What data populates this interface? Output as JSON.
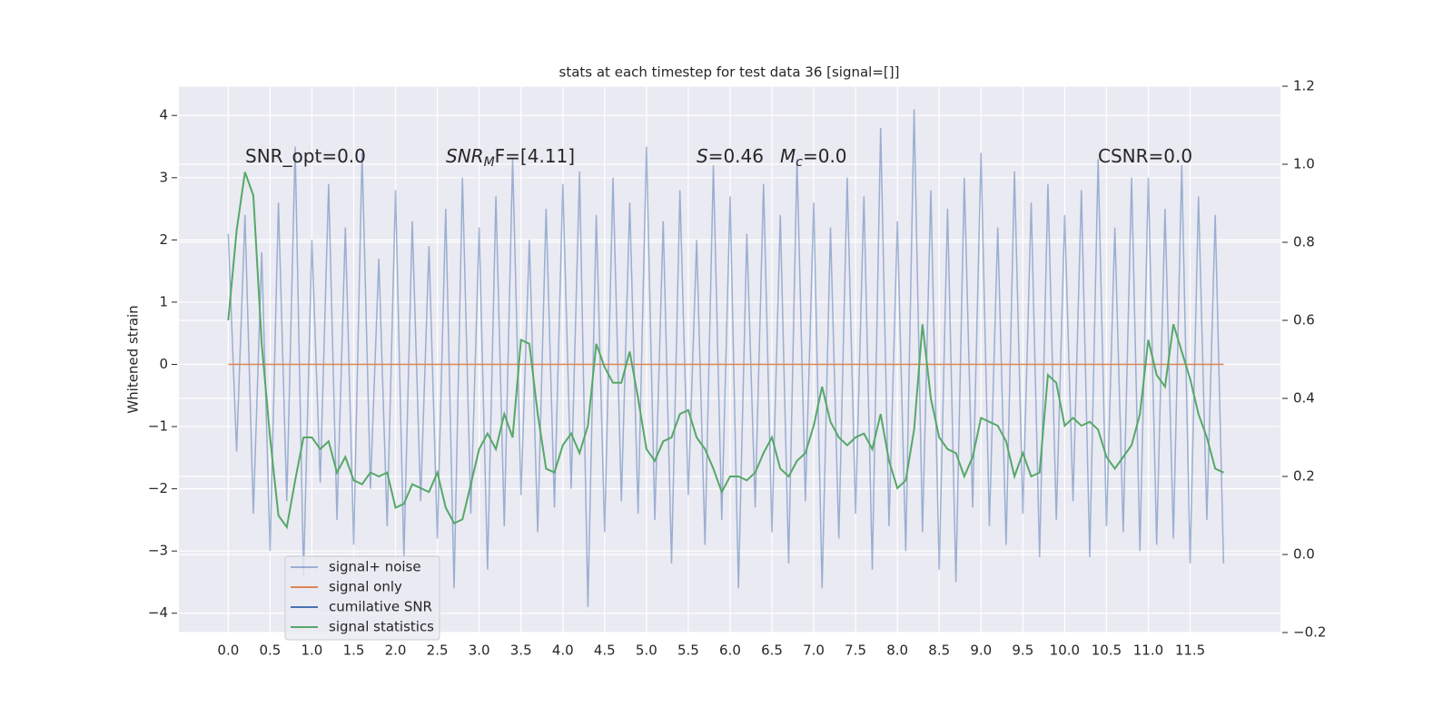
{
  "chart_data": {
    "type": "line",
    "title": "stats at each timestep for test data 36 [signal=[]]",
    "ylabel": "Whitened strain",
    "grid": true,
    "legend": "lower left",
    "annotations": [
      {
        "text": "SNR_opt=0.0"
      },
      {
        "italic": "SNR",
        "sub": "M",
        "text": "F=[4.11]"
      },
      {
        "italic": "S",
        "text": "=0.46"
      },
      {
        "italic": "M",
        "sub": "c",
        "text": "=0.0"
      },
      {
        "text": "CSNR=0.0"
      }
    ],
    "xlim": [
      -0.59,
      12.58
    ],
    "ylim": [
      -4.31,
      4.47
    ],
    "y2lim": [
      -0.2,
      1.2
    ],
    "xticks": [
      {
        "value": 0,
        "label": "0.0"
      },
      {
        "value": 0.5,
        "label": "0.5"
      },
      {
        "value": 1,
        "label": "1.0"
      },
      {
        "value": 1.5,
        "label": "1.5"
      },
      {
        "value": 2,
        "label": "2.0"
      },
      {
        "value": 2.5,
        "label": "2.5"
      },
      {
        "value": 3,
        "label": "3.0"
      },
      {
        "value": 3.5,
        "label": "3.5"
      },
      {
        "value": 4,
        "label": "4.0"
      },
      {
        "value": 4.5,
        "label": "4.5"
      },
      {
        "value": 5,
        "label": "5.0"
      },
      {
        "value": 5.5,
        "label": "5.5"
      },
      {
        "value": 6,
        "label": "6.0"
      },
      {
        "value": 6.5,
        "label": "6.5"
      },
      {
        "value": 7,
        "label": "7.0"
      },
      {
        "value": 7.5,
        "label": "7.5"
      },
      {
        "value": 8,
        "label": "8.0"
      },
      {
        "value": 8.5,
        "label": "8.5"
      },
      {
        "value": 9,
        "label": "9.0"
      },
      {
        "value": 9.5,
        "label": "9.5"
      },
      {
        "value": 10,
        "label": "10.0"
      },
      {
        "value": 10.5,
        "label": "10.5"
      },
      {
        "value": 11,
        "label": "11.0"
      },
      {
        "value": 11.5,
        "label": "11.5"
      }
    ],
    "yticks": [
      {
        "value": -4,
        "label": "−4"
      },
      {
        "value": -3,
        "label": "−3"
      },
      {
        "value": -2,
        "label": "−2"
      },
      {
        "value": -1,
        "label": "−1"
      },
      0,
      1,
      2,
      3,
      4
    ],
    "y2ticks": [
      {
        "value": -0.2,
        "label": "−0.2"
      },
      {
        "value": 0,
        "label": "0.0"
      },
      {
        "value": 0.2,
        "label": "0.2"
      },
      {
        "value": 0.4,
        "label": "0.4"
      },
      {
        "value": 0.6,
        "label": "0.6"
      },
      {
        "value": 0.8,
        "label": "0.8"
      },
      {
        "value": 1,
        "label": "1.0"
      },
      {
        "value": 1.2,
        "label": "1.2"
      }
    ],
    "x": [
      0,
      0.1,
      0.2,
      0.3,
      0.4,
      0.5,
      0.6,
      0.7,
      0.8,
      0.9,
      1,
      1.1,
      1.2,
      1.3,
      1.4,
      1.5,
      1.6,
      1.7,
      1.8,
      1.9,
      2,
      2.1,
      2.2,
      2.3,
      2.4,
      2.5,
      2.6,
      2.7,
      2.8,
      2.9,
      3,
      3.1,
      3.2,
      3.3,
      3.4,
      3.5,
      3.6,
      3.7,
      3.8,
      3.9,
      4,
      4.1,
      4.2,
      4.3,
      4.4,
      4.5,
      4.6,
      4.7,
      4.8,
      4.9,
      5,
      5.1,
      5.2,
      5.3,
      5.4,
      5.5,
      5.6,
      5.7,
      5.8,
      5.9,
      6,
      6.1,
      6.2,
      6.3,
      6.4,
      6.5,
      6.6,
      6.7,
      6.8,
      6.9,
      7,
      7.1,
      7.2,
      7.3,
      7.4,
      7.5,
      7.6,
      7.7,
      7.8,
      7.9,
      8,
      8.1,
      8.2,
      8.3,
      8.4,
      8.5,
      8.6,
      8.7,
      8.8,
      8.9,
      9,
      9.1,
      9.2,
      9.3,
      9.4,
      9.5,
      9.6,
      9.7,
      9.8,
      9.9,
      10,
      10.1,
      10.2,
      10.3,
      10.4,
      10.5,
      10.6,
      10.7,
      10.8,
      10.9,
      11,
      11.1,
      11.2,
      11.3,
      11.4,
      11.5,
      11.6,
      11.7,
      11.8,
      11.9
    ],
    "series": [
      {
        "name": "signal+ noise",
        "color": "#4c72b0",
        "alpha": 0.5,
        "values": [
          2.1,
          -1.4,
          2.4,
          -2.4,
          1.8,
          -3.0,
          2.6,
          -2.2,
          3.5,
          -3.4,
          2.0,
          -1.9,
          2.9,
          -2.5,
          2.2,
          -2.9,
          3.4,
          -2.0,
          1.7,
          -2.6,
          2.8,
          -3.1,
          2.3,
          -2.2,
          1.9,
          -2.8,
          2.5,
          -3.6,
          3.0,
          -2.4,
          2.2,
          -3.3,
          2.7,
          -2.6,
          3.3,
          -2.1,
          2.0,
          -2.7,
          2.5,
          -2.3,
          2.9,
          -2.0,
          3.1,
          -3.9,
          2.4,
          -2.7,
          3.0,
          -2.2,
          2.6,
          -2.4,
          3.5,
          -2.5,
          2.3,
          -3.2,
          2.8,
          -2.1,
          2.0,
          -2.9,
          3.2,
          -2.5,
          2.7,
          -3.6,
          2.1,
          -2.3,
          2.9,
          -2.7,
          2.4,
          -3.2,
          3.3,
          -2.2,
          2.6,
          -3.6,
          2.2,
          -2.8,
          3.0,
          -2.4,
          2.7,
          -3.3,
          3.8,
          -2.6,
          2.3,
          -3.0,
          4.1,
          -2.7,
          2.8,
          -3.3,
          2.5,
          -3.5,
          3.0,
          -2.3,
          3.4,
          -2.6,
          2.2,
          -2.9,
          3.1,
          -2.4,
          2.6,
          -3.1,
          2.9,
          -2.5,
          2.4,
          -2.2,
          2.8,
          -3.1,
          3.3,
          -2.6,
          2.2,
          -2.7,
          3.0,
          -3.0,
          3.0,
          -2.9,
          2.5,
          -2.8,
          3.2,
          -3.2,
          2.7,
          -2.5,
          2.4,
          -3.2
        ]
      },
      {
        "name": "signal only",
        "color": "#dd8452",
        "alpha": 1,
        "values": [
          0,
          0,
          0,
          0,
          0,
          0,
          0,
          0,
          0,
          0,
          0,
          0,
          0,
          0,
          0,
          0,
          0,
          0,
          0,
          0,
          0,
          0,
          0,
          0,
          0,
          0,
          0,
          0,
          0,
          0,
          0,
          0,
          0,
          0,
          0,
          0,
          0,
          0,
          0,
          0,
          0,
          0,
          0,
          0,
          0,
          0,
          0,
          0,
          0,
          0,
          0,
          0,
          0,
          0,
          0,
          0,
          0,
          0,
          0,
          0,
          0,
          0,
          0,
          0,
          0,
          0,
          0,
          0,
          0,
          0,
          0,
          0,
          0,
          0,
          0,
          0,
          0,
          0,
          0,
          0,
          0,
          0,
          0,
          0,
          0,
          0,
          0,
          0,
          0,
          0,
          0,
          0,
          0,
          0,
          0,
          0,
          0,
          0,
          0,
          0,
          0,
          0,
          0,
          0,
          0,
          0,
          0,
          0,
          0,
          0,
          0,
          0,
          0,
          0,
          0,
          0,
          0,
          0,
          0,
          0
        ]
      },
      {
        "name": "cumilative SNR",
        "color": "#4c72b0",
        "alpha": 1
      },
      {
        "name": "signal statistics",
        "color": "#55a868",
        "alpha": 1,
        "axis": "y2",
        "values": [
          0.6,
          0.83,
          0.98,
          0.92,
          0.54,
          0.3,
          0.1,
          0.07,
          0.19,
          0.3,
          0.3,
          0.27,
          0.29,
          0.21,
          0.25,
          0.19,
          0.18,
          0.21,
          0.2,
          0.21,
          0.12,
          0.13,
          0.18,
          0.17,
          0.16,
          0.21,
          0.12,
          0.08,
          0.09,
          0.18,
          0.27,
          0.31,
          0.27,
          0.36,
          0.3,
          0.55,
          0.54,
          0.36,
          0.22,
          0.21,
          0.28,
          0.31,
          0.26,
          0.33,
          0.54,
          0.48,
          0.44,
          0.44,
          0.52,
          0.4,
          0.27,
          0.24,
          0.29,
          0.3,
          0.36,
          0.37,
          0.3,
          0.27,
          0.22,
          0.16,
          0.2,
          0.2,
          0.19,
          0.21,
          0.26,
          0.3,
          0.22,
          0.2,
          0.24,
          0.26,
          0.33,
          0.43,
          0.34,
          0.3,
          0.28,
          0.3,
          0.31,
          0.27,
          0.36,
          0.24,
          0.17,
          0.19,
          0.32,
          0.59,
          0.4,
          0.3,
          0.27,
          0.26,
          0.2,
          0.25,
          0.35,
          0.34,
          0.33,
          0.29,
          0.2,
          0.26,
          0.2,
          0.21,
          0.46,
          0.44,
          0.33,
          0.35,
          0.33,
          0.34,
          0.32,
          0.25,
          0.22,
          0.25,
          0.28,
          0.36,
          0.55,
          0.46,
          0.43,
          0.59,
          0.52,
          0.45,
          0.36,
          0.3,
          0.22,
          0.21
        ]
      }
    ]
  }
}
